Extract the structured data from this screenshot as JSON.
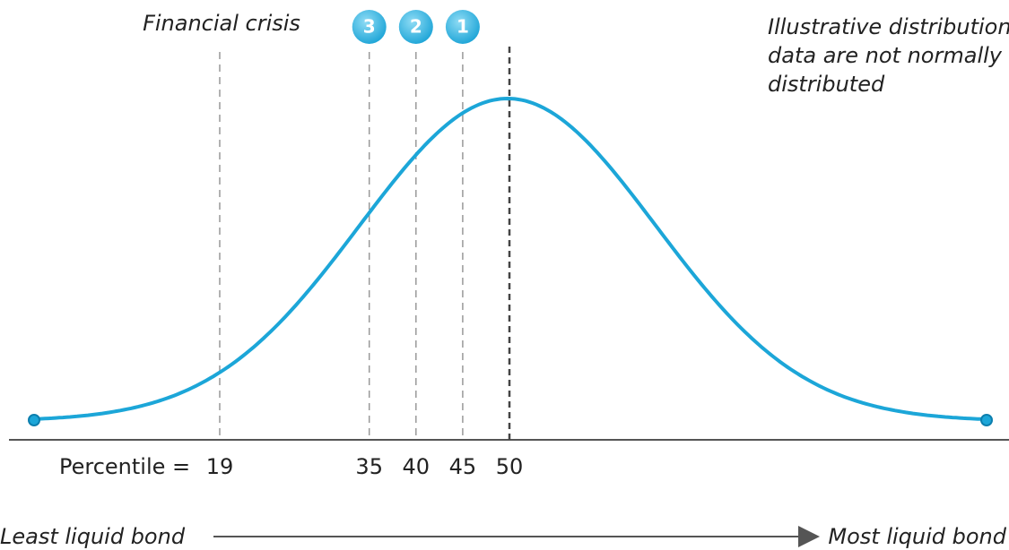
{
  "annotations": {
    "crisis": "Financial crisis",
    "note": [
      "Illustrative distribution,",
      "data are not normally",
      "distributed"
    ]
  },
  "percentile_label": "Percentile =",
  "markers": [
    {
      "value": 19
    },
    {
      "value": 35,
      "badge": "3"
    },
    {
      "value": 40,
      "badge": "2"
    },
    {
      "value": 45,
      "badge": "1"
    },
    {
      "value": 50
    }
  ],
  "axis": {
    "left": "Least liquid bond",
    "right": "Most liquid bond"
  }
}
